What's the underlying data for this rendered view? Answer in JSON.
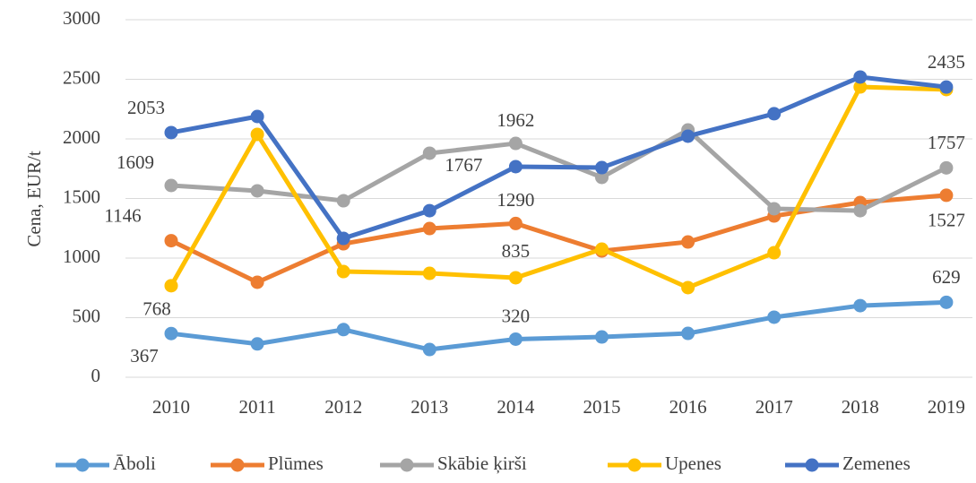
{
  "chart_data": {
    "type": "line",
    "y_label": "Cena, EUR/t",
    "categories": [
      "2010",
      "2011",
      "2012",
      "2013",
      "2014",
      "2015",
      "2016",
      "2017",
      "2018",
      "2019"
    ],
    "series": [
      {
        "name": "Āboli",
        "color": "#5b9bd5",
        "values": [
          367,
          280,
          400,
          233,
          320,
          338,
          368,
          504,
          601,
          629
        ],
        "value_labels": [
          "367",
          null,
          null,
          null,
          "320",
          null,
          null,
          null,
          null,
          "629"
        ]
      },
      {
        "name": "Plūmes",
        "color": "#ed7d31",
        "values": [
          1146,
          797,
          1120,
          1248,
          1290,
          1060,
          1135,
          1353,
          1466,
          1527
        ],
        "value_labels": [
          "1146",
          null,
          null,
          null,
          "1290",
          null,
          null,
          null,
          null,
          "1527"
        ]
      },
      {
        "name": "Skābie ķirši",
        "color": "#a5a5a5",
        "values": [
          1609,
          1564,
          1481,
          1880,
          1962,
          1677,
          2075,
          1414,
          1398,
          1757
        ],
        "value_labels": [
          "1609",
          null,
          null,
          null,
          "1962",
          null,
          null,
          null,
          null,
          "1757"
        ]
      },
      {
        "name": "Upenes",
        "color": "#ffc000",
        "values": [
          768,
          2038,
          887,
          872,
          835,
          1075,
          752,
          1045,
          2436,
          2414
        ],
        "value_labels": [
          "768",
          null,
          null,
          null,
          "835",
          null,
          null,
          null,
          null,
          null
        ]
      },
      {
        "name": "Zemenes",
        "color": "#4472c4",
        "values": [
          2053,
          2188,
          1165,
          1398,
          1767,
          1759,
          2023,
          2211,
          2519,
          2435
        ],
        "value_labels": [
          "2053",
          null,
          null,
          null,
          "1767",
          null,
          null,
          null,
          null,
          "2435"
        ]
      }
    ],
    "ylim": [
      0,
      3000
    ],
    "yticks": [
      0,
      500,
      1000,
      1500,
      2000,
      2500,
      3000
    ],
    "grid": true,
    "legend": "bottom"
  }
}
